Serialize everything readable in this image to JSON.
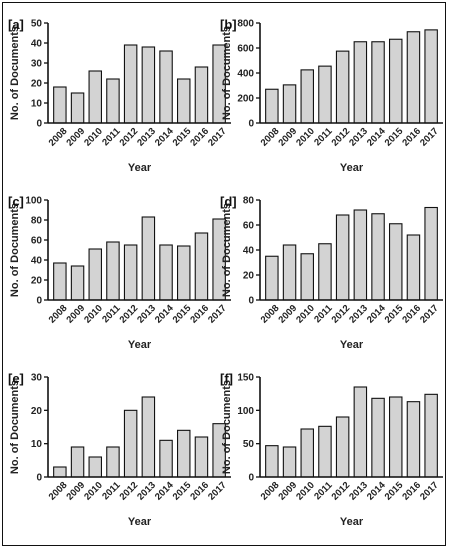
{
  "chart_data": [
    {
      "type": "bar",
      "panel_label": "[a]",
      "categories": [
        "2008",
        "2009",
        "2010",
        "2011",
        "2012",
        "2013",
        "2014",
        "2015",
        "2016",
        "2017"
      ],
      "values": [
        18,
        15,
        26,
        22,
        39,
        38,
        36,
        22,
        28,
        39
      ],
      "xlabel": "Year",
      "ylabel": "No. of Documents",
      "ylim": [
        0,
        50
      ],
      "yticks": [
        0,
        10,
        20,
        30,
        40,
        50
      ]
    },
    {
      "type": "bar",
      "panel_label": "[b]",
      "categories": [
        "2008",
        "2009",
        "2010",
        "2011",
        "2012",
        "2013",
        "2014",
        "2015",
        "2016",
        "2017"
      ],
      "values": [
        270,
        305,
        425,
        455,
        575,
        650,
        650,
        670,
        730,
        745
      ],
      "xlabel": "Year",
      "ylabel": "No. of Documents",
      "ylim": [
        0,
        800
      ],
      "yticks": [
        0,
        200,
        400,
        600,
        800
      ]
    },
    {
      "type": "bar",
      "panel_label": "[c]",
      "categories": [
        "2008",
        "2009",
        "2010",
        "2011",
        "2012",
        "2013",
        "2014",
        "2015",
        "2016",
        "2017"
      ],
      "values": [
        37,
        34,
        51,
        58,
        55,
        83,
        55,
        54,
        67,
        81
      ],
      "xlabel": "Year",
      "ylabel": "No. of Documents",
      "ylim": [
        0,
        100
      ],
      "yticks": [
        0,
        20,
        40,
        60,
        80,
        100
      ]
    },
    {
      "type": "bar",
      "panel_label": "[d]",
      "categories": [
        "2008",
        "2009",
        "2010",
        "2011",
        "2012",
        "2013",
        "2014",
        "2015",
        "2016",
        "2017"
      ],
      "values": [
        35,
        44,
        37,
        45,
        68,
        72,
        69,
        61,
        52,
        74
      ],
      "xlabel": "Year",
      "ylabel": "No. of Documents",
      "ylim": [
        0,
        80
      ],
      "yticks": [
        0,
        20,
        40,
        60,
        80
      ]
    },
    {
      "type": "bar",
      "panel_label": "[e]",
      "categories": [
        "2008",
        "2009",
        "2010",
        "2011",
        "2012",
        "2013",
        "2014",
        "2015",
        "2016",
        "2017"
      ],
      "values": [
        3,
        9,
        6,
        9,
        20,
        24,
        11,
        14,
        12,
        16
      ],
      "xlabel": "Year",
      "ylabel": "No. of Documents",
      "ylim": [
        0,
        30
      ],
      "yticks": [
        0,
        10,
        20,
        30
      ]
    },
    {
      "type": "bar",
      "panel_label": "[f]",
      "categories": [
        "2008",
        "2009",
        "2010",
        "2011",
        "2012",
        "2013",
        "2014",
        "2015",
        "2016",
        "2017"
      ],
      "values": [
        47,
        45,
        72,
        76,
        90,
        135,
        118,
        120,
        113,
        124
      ],
      "xlabel": "Year",
      "ylabel": "No. of Documents",
      "ylim": [
        0,
        150
      ],
      "yticks": [
        0,
        50,
        100,
        150
      ]
    }
  ],
  "colors": {
    "bar_fill": "#d3d3d3",
    "bar_stroke": "#111111",
    "axis": "#111111",
    "frame": "#111111"
  }
}
